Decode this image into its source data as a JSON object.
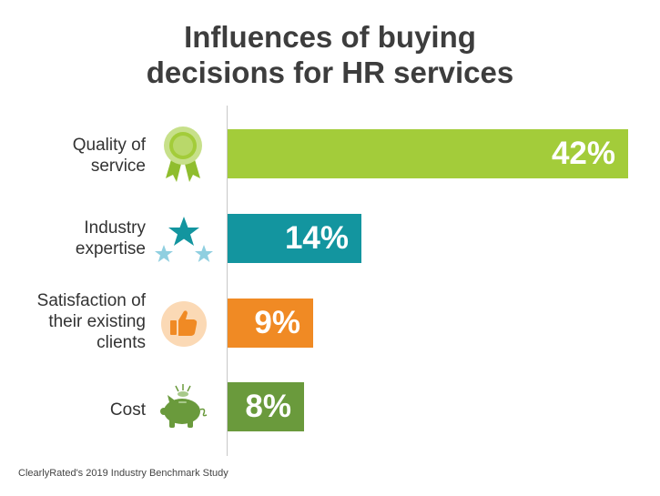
{
  "title_lines": [
    "Influences of buying",
    "decisions for HR services"
  ],
  "source": "ClearlyRated's 2019 Industry Benchmark Study",
  "chart_data": {
    "type": "bar",
    "orientation": "horizontal",
    "title": "Influences of buying decisions for HR services",
    "categories": [
      {
        "lines": [
          "Quality of",
          "service"
        ],
        "icon": "award-ribbon-icon",
        "color": "#a3cc3a",
        "value": 42,
        "label": "42%"
      },
      {
        "lines": [
          "Industry",
          "expertise"
        ],
        "icon": "stars-icon",
        "color": "#13959f",
        "value": 14,
        "label": "14%"
      },
      {
        "lines": [
          "Satisfaction of",
          "their existing",
          "clients"
        ],
        "icon": "thumbs-up-icon",
        "color": "#f08a24",
        "value": 9,
        "label": "9%"
      },
      {
        "lines": [
          "Cost"
        ],
        "icon": "piggy-bank-icon",
        "color": "#6a9a3c",
        "value": 8,
        "label": "8%"
      }
    ],
    "unit": "%",
    "grid": false,
    "legend": "none"
  }
}
